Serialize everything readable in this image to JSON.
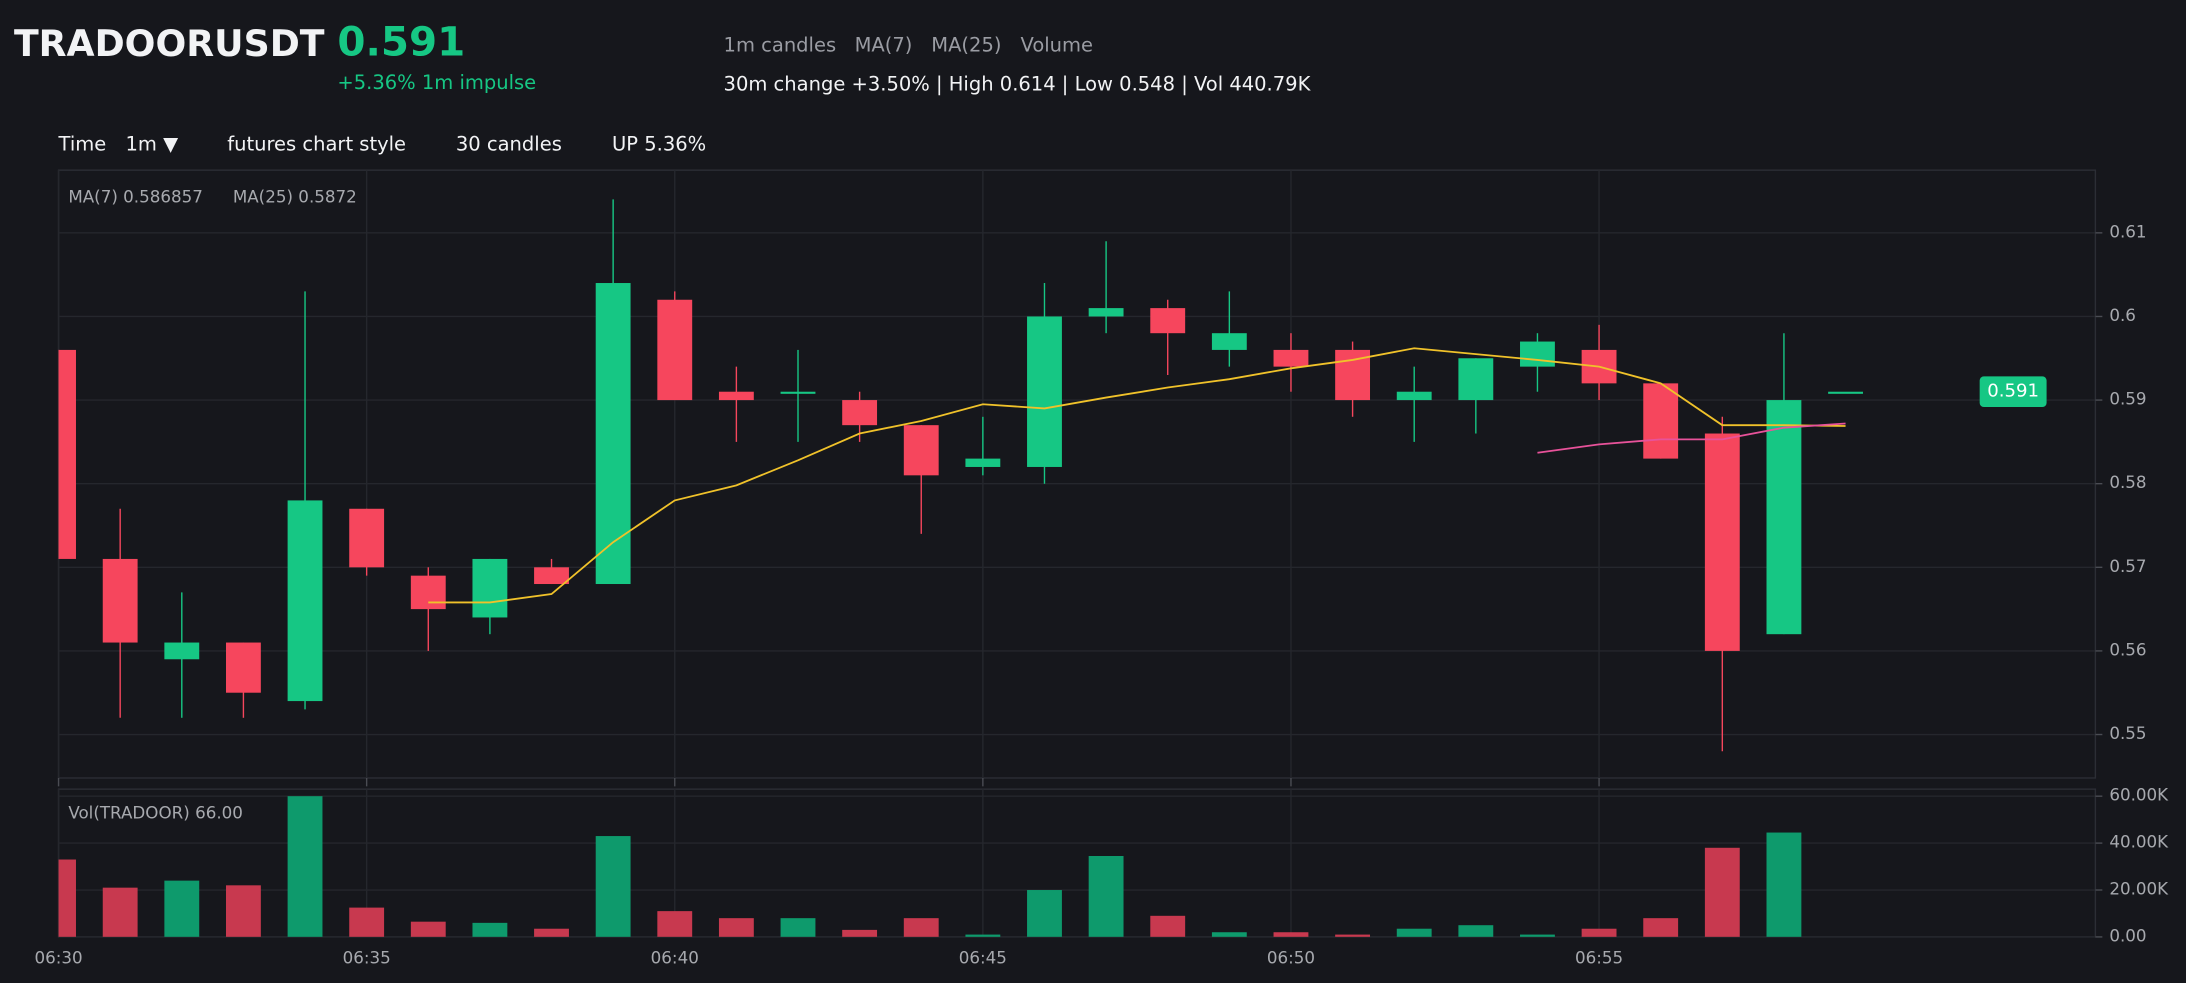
{
  "header": {
    "symbol": "TRADOORUSDT",
    "price": "0.591",
    "impulse": "+5.36% 1m impulse",
    "tags": [
      "1m candles",
      "MA(7)",
      "MA(25)",
      "Volume"
    ],
    "stats": "30m change +3.50% | High 0.614 | Low 0.548 | Vol 440.79K"
  },
  "toolbar": {
    "time_label": "Time",
    "interval": "1m ▼",
    "style": "futures chart style",
    "count": "30 candles",
    "direction": "UP 5.36%"
  },
  "chart_data": [
    {
      "type": "candlestick",
      "up_color": "#16c784",
      "down_color": "#f6465d",
      "open": [
        0.596,
        0.571,
        0.559,
        0.561,
        0.554,
        0.577,
        0.569,
        0.564,
        0.57,
        0.568,
        0.602,
        0.591,
        0.591,
        0.59,
        0.587,
        0.582,
        0.582,
        0.6,
        0.601,
        0.596,
        0.596,
        0.596,
        0.59,
        0.59,
        0.594,
        0.596,
        0.592,
        0.586,
        0.562,
        0.591
      ],
      "high": [
        0.596,
        0.577,
        0.567,
        0.561,
        0.603,
        0.577,
        0.57,
        0.571,
        0.571,
        0.614,
        0.603,
        0.594,
        0.596,
        0.591,
        0.587,
        0.588,
        0.604,
        0.609,
        0.602,
        0.603,
        0.598,
        0.597,
        0.594,
        0.595,
        0.598,
        0.599,
        0.592,
        0.588,
        0.598,
        0.591
      ],
      "low": [
        0.571,
        0.552,
        0.552,
        0.552,
        0.553,
        0.569,
        0.56,
        0.562,
        0.568,
        0.568,
        0.59,
        0.585,
        0.585,
        0.585,
        0.574,
        0.581,
        0.58,
        0.598,
        0.593,
        0.594,
        0.591,
        0.588,
        0.585,
        0.586,
        0.591,
        0.59,
        0.583,
        0.548,
        0.562,
        0.591
      ],
      "close": [
        0.571,
        0.561,
        0.561,
        0.555,
        0.578,
        0.57,
        0.565,
        0.571,
        0.568,
        0.604,
        0.59,
        0.59,
        0.591,
        0.587,
        0.581,
        0.583,
        0.6,
        0.601,
        0.598,
        0.598,
        0.594,
        0.59,
        0.591,
        0.595,
        0.597,
        0.592,
        0.583,
        0.56,
        0.59,
        0.591
      ],
      "series": [
        {
          "name": "MA(7) 0.586857",
          "color": "#f0c22a",
          "values": [
            null,
            null,
            null,
            null,
            null,
            null,
            0.5658,
            0.5658,
            0.5668,
            0.573,
            0.578,
            0.5798,
            0.5828,
            0.586,
            0.5875,
            0.5895,
            0.589,
            0.5903,
            0.5915,
            0.5925,
            0.5938,
            0.5948,
            0.5962,
            0.5955,
            0.5948,
            0.594,
            0.592,
            0.587,
            0.587,
            0.5869
          ]
        },
        {
          "name": "MA(25) 0.5872",
          "color": "#e8529a",
          "values": [
            null,
            null,
            null,
            null,
            null,
            null,
            null,
            null,
            null,
            null,
            null,
            null,
            null,
            null,
            null,
            null,
            null,
            null,
            null,
            null,
            null,
            null,
            null,
            null,
            0.5837,
            0.5847,
            0.5853,
            0.5853,
            0.5867,
            0.5872
          ]
        }
      ],
      "last_price": 0.591,
      "ylim": [
        0.5448,
        0.6175
      ],
      "yticks": [
        0.55,
        0.56,
        0.57,
        0.58,
        0.59,
        0.6,
        0.61
      ],
      "grid": true
    },
    {
      "type": "bar",
      "title": "Vol(TRADOOR) 66.00",
      "up_color": "#0e9a6c",
      "down_color": "#c8394f",
      "categories": [
        "06:30",
        null,
        null,
        null,
        null,
        "06:35",
        null,
        null,
        null,
        null,
        "06:40",
        null,
        null,
        null,
        null,
        "06:45",
        null,
        null,
        null,
        null,
        "06:50",
        null,
        null,
        null,
        null,
        "06:55",
        null,
        null,
        null,
        null
      ],
      "values": [
        33000,
        21000,
        24000,
        22000,
        60000,
        12500,
        6500,
        6000,
        3500,
        43000,
        11000,
        8000,
        8000,
        3000,
        8000,
        1000,
        20000,
        34500,
        9000,
        2000,
        2000,
        1000,
        3500,
        5000,
        1000,
        3500,
        8000,
        38000,
        44500,
        0
      ],
      "ylim": [
        0,
        63000
      ],
      "yticks": [
        {
          "value": 0,
          "label": "0.00"
        },
        {
          "value": 20000,
          "label": "20.00K"
        },
        {
          "value": 40000,
          "label": "40.00K"
        },
        {
          "value": 60000,
          "label": "60.00K"
        }
      ],
      "grid": true
    }
  ]
}
